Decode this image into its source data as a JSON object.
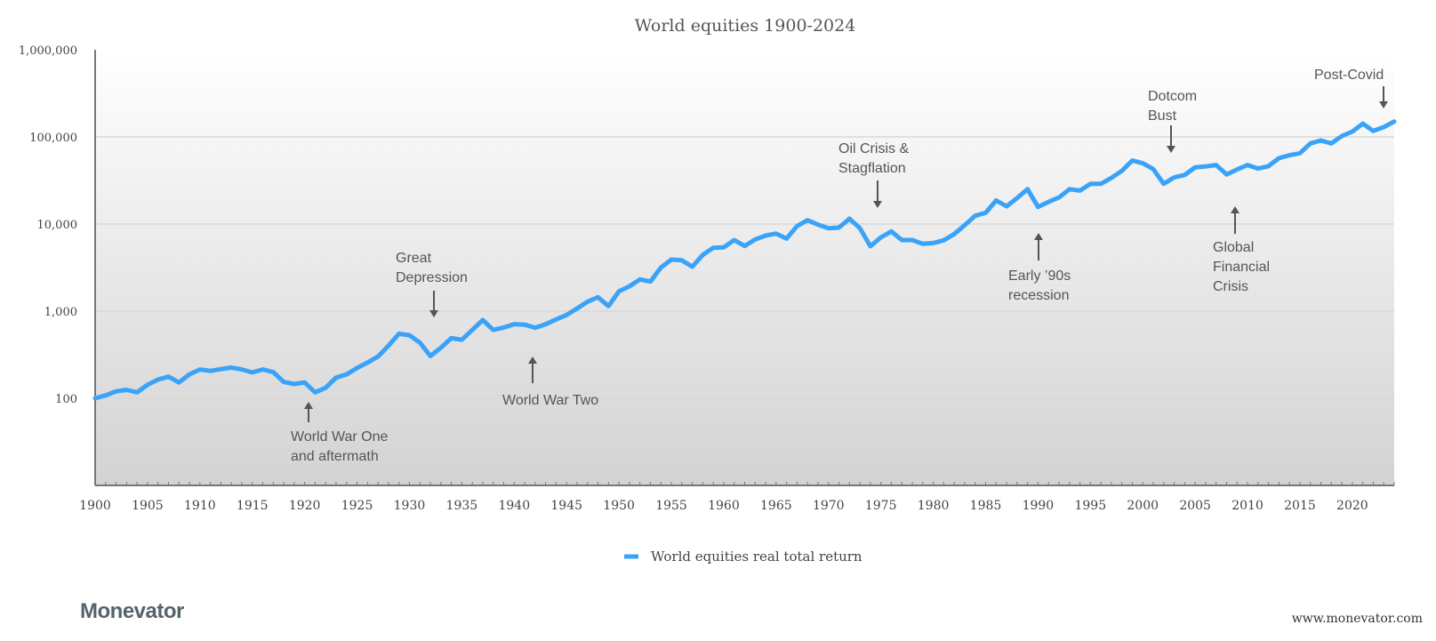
{
  "chart_data": {
    "type": "line",
    "title": "World equities 1900-2024",
    "xlabel": "",
    "ylabel": "",
    "y_scale": "log",
    "ylim": [
      10,
      1000000
    ],
    "xlim": [
      1900,
      2024
    ],
    "grid": true,
    "y_ticks": [
      {
        "value": 100,
        "label": "100"
      },
      {
        "value": 1000,
        "label": "1,000"
      },
      {
        "value": 10000,
        "label": "10,000"
      },
      {
        "value": 100000,
        "label": "100,000"
      },
      {
        "value": 1000000,
        "label": "1,000,000"
      }
    ],
    "x_ticks": [
      "1900",
      "1905",
      "1910",
      "1915",
      "1920",
      "1925",
      "1930",
      "1935",
      "1940",
      "1945",
      "1950",
      "1955",
      "1960",
      "1965",
      "1970",
      "1975",
      "1980",
      "1985",
      "1990",
      "1995",
      "2000",
      "2005",
      "2010",
      "2015",
      "2020"
    ],
    "legend_position": "bottom",
    "series": [
      {
        "name": "World equities real total return",
        "color": "#3aa3f8",
        "x": [
          1900,
          1901,
          1902,
          1903,
          1904,
          1905,
          1906,
          1907,
          1908,
          1909,
          1910,
          1911,
          1912,
          1913,
          1914,
          1915,
          1916,
          1917,
          1918,
          1919,
          1920,
          1921,
          1922,
          1923,
          1924,
          1925,
          1926,
          1927,
          1928,
          1929,
          1930,
          1931,
          1932,
          1933,
          1934,
          1935,
          1936,
          1937,
          1938,
          1939,
          1940,
          1941,
          1942,
          1943,
          1944,
          1945,
          1946,
          1947,
          1948,
          1949,
          1950,
          1951,
          1952,
          1953,
          1954,
          1955,
          1956,
          1957,
          1958,
          1959,
          1960,
          1961,
          1962,
          1963,
          1964,
          1965,
          1966,
          1967,
          1968,
          1969,
          1970,
          1971,
          1972,
          1973,
          1974,
          1975,
          1976,
          1977,
          1978,
          1979,
          1980,
          1981,
          1982,
          1983,
          1984,
          1985,
          1986,
          1987,
          1988,
          1989,
          1990,
          1991,
          1992,
          1993,
          1994,
          1995,
          1996,
          1997,
          1998,
          1999,
          2000,
          2001,
          2002,
          2003,
          2004,
          2005,
          2006,
          2007,
          2008,
          2009,
          2010,
          2011,
          2012,
          2013,
          2014,
          2015,
          2016,
          2017,
          2018,
          2019,
          2020,
          2021,
          2022,
          2023,
          2024
        ],
        "y": [
          100,
          108,
          120,
          125,
          117,
          143,
          164,
          177,
          152,
          188,
          214,
          206,
          216,
          225,
          214,
          198,
          214,
          200,
          154,
          146,
          152,
          117,
          132,
          173,
          188,
          223,
          257,
          301,
          402,
          550,
          529,
          435,
          305,
          380,
          489,
          470,
          609,
          790,
          609,
          649,
          710,
          700,
          646,
          708,
          804,
          903,
          1073,
          1285,
          1445,
          1143,
          1690,
          1931,
          2312,
          2188,
          3162,
          3906,
          3846,
          3236,
          4429,
          5343,
          5386,
          6546,
          5598,
          6653,
          7365,
          7785,
          6808,
          9465,
          11070,
          9840,
          8955,
          9100,
          11510,
          8955,
          5559,
          7031,
          8222,
          6546,
          6546,
          5916,
          6050,
          6510,
          7670,
          9690,
          12440,
          13450,
          18660,
          15970,
          19850,
          25100,
          15740,
          17950,
          20180,
          25100,
          24170,
          28910,
          28910,
          33820,
          40780,
          53550,
          49940,
          42720,
          28910,
          34350,
          36570,
          44780,
          45820,
          47640,
          37080,
          42340,
          47640,
          43330,
          46130,
          56970,
          61610,
          65120,
          84210,
          91060,
          84210,
          102400,
          115100,
          142000,
          117000,
          129500,
          150000
        ]
      }
    ],
    "annotations": [
      {
        "year": 1920,
        "lines": [
          "World War One",
          "and aftermath"
        ],
        "arrow": "up"
      },
      {
        "year": 1931,
        "lines": [
          "Great",
          "Depression"
        ],
        "arrow": "down"
      },
      {
        "year": 1941,
        "lines": [
          "World War Two"
        ],
        "arrow": "up"
      },
      {
        "year": 1974,
        "lines": [
          "Oil Crisis &",
          "Stagflation"
        ],
        "arrow": "down"
      },
      {
        "year": 1990,
        "lines": [
          "Early ’90s",
          "recession"
        ],
        "arrow": "up"
      },
      {
        "year": 2002,
        "lines": [
          "Dotcom",
          "Bust"
        ],
        "arrow": "down"
      },
      {
        "year": 2008,
        "lines": [
          "Global",
          "Financial",
          "Crisis"
        ],
        "arrow": "up"
      },
      {
        "year": 2022,
        "lines": [
          "Post-Covid"
        ],
        "arrow": "down"
      }
    ]
  },
  "footer": {
    "logo_text": "Monevator",
    "website": "www.monevator.com"
  }
}
